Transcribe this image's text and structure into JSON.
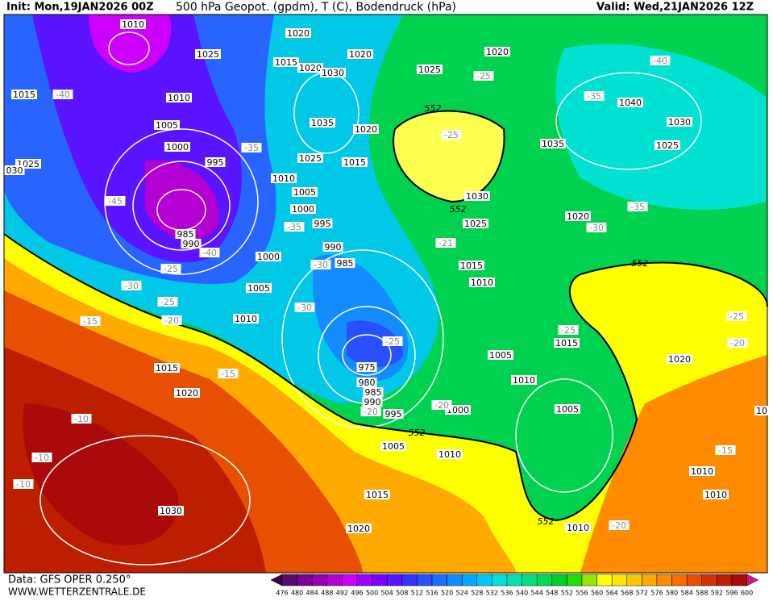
{
  "header": {
    "init": "Init: Mon,19JAN2026 00Z",
    "title": "500 hPa Geopot. (gpdm), T (C), Bodendruck (hPa)",
    "valid": "Valid: Wed,21JAN2026 12Z"
  },
  "footer": {
    "data": "Data: GFS OPER 0.250°",
    "site": "WWW.WETTERZENTRALE.DE"
  },
  "isobar_labels": [
    "1010",
    "1025",
    "1020",
    "1015",
    "1020",
    "1030",
    "1020",
    "1025",
    "1020",
    "1015",
    "1010",
    "1005",
    "1000",
    "995",
    "1035",
    "1020",
    "1025",
    "1015",
    "1010",
    "1005",
    "1000",
    "995",
    "1035",
    "1040",
    "1030",
    "1025",
    "1030",
    "1025",
    "1020",
    "1025",
    "030",
    "985",
    "990",
    "990",
    "985",
    "1000",
    "1005",
    "1010",
    "1015",
    "1010",
    "1015",
    "1020",
    "975",
    "980",
    "985",
    "990",
    "995",
    "1000",
    "1005",
    "1010",
    "1015",
    "1020",
    "1005",
    "1005",
    "1010",
    "1015",
    "1020",
    "1030",
    "1010",
    "1010",
    "1010",
    "10"
  ],
  "temperature_labels": [
    "-40",
    "-40",
    "-25",
    "-35",
    "-25",
    "-35",
    "-45",
    "-35",
    "-40",
    "-25",
    "-30",
    "-30",
    "-25",
    "-30",
    "-15",
    "-20",
    "-21",
    "-30",
    "-35",
    "-25",
    "-25",
    "-25",
    "-20",
    "-15",
    "-20",
    "-20",
    "-10",
    "-10",
    "-10",
    "-15",
    "-20"
  ],
  "contour_552_labels": [
    "552",
    "552",
    "552",
    "552",
    "552"
  ],
  "colorbar": {
    "labels": [
      476,
      480,
      484,
      488,
      492,
      496,
      500,
      504,
      508,
      512,
      516,
      520,
      524,
      528,
      532,
      536,
      540,
      544,
      548,
      552,
      556,
      560,
      564,
      568,
      572,
      576,
      580,
      584,
      588,
      592,
      596,
      600
    ],
    "colors": [
      "#3c0046",
      "#5a0a6e",
      "#7a0096",
      "#9600b4",
      "#b400d2",
      "#cd00ff",
      "#a000ff",
      "#7d00ff",
      "#5a14ff",
      "#3232ff",
      "#2850ff",
      "#1e6eff",
      "#148cff",
      "#00aaff",
      "#00c8ff",
      "#00e1e1",
      "#00e1b4",
      "#00e182",
      "#00dc50",
      "#00d228",
      "#28dc00",
      "#96e600",
      "#ffff00",
      "#ffe600",
      "#ffc800",
      "#ffaa00",
      "#ff8c00",
      "#f56e00",
      "#e65000",
      "#d23200",
      "#be1e00",
      "#aa0a0a",
      "#d2148c"
    ]
  }
}
